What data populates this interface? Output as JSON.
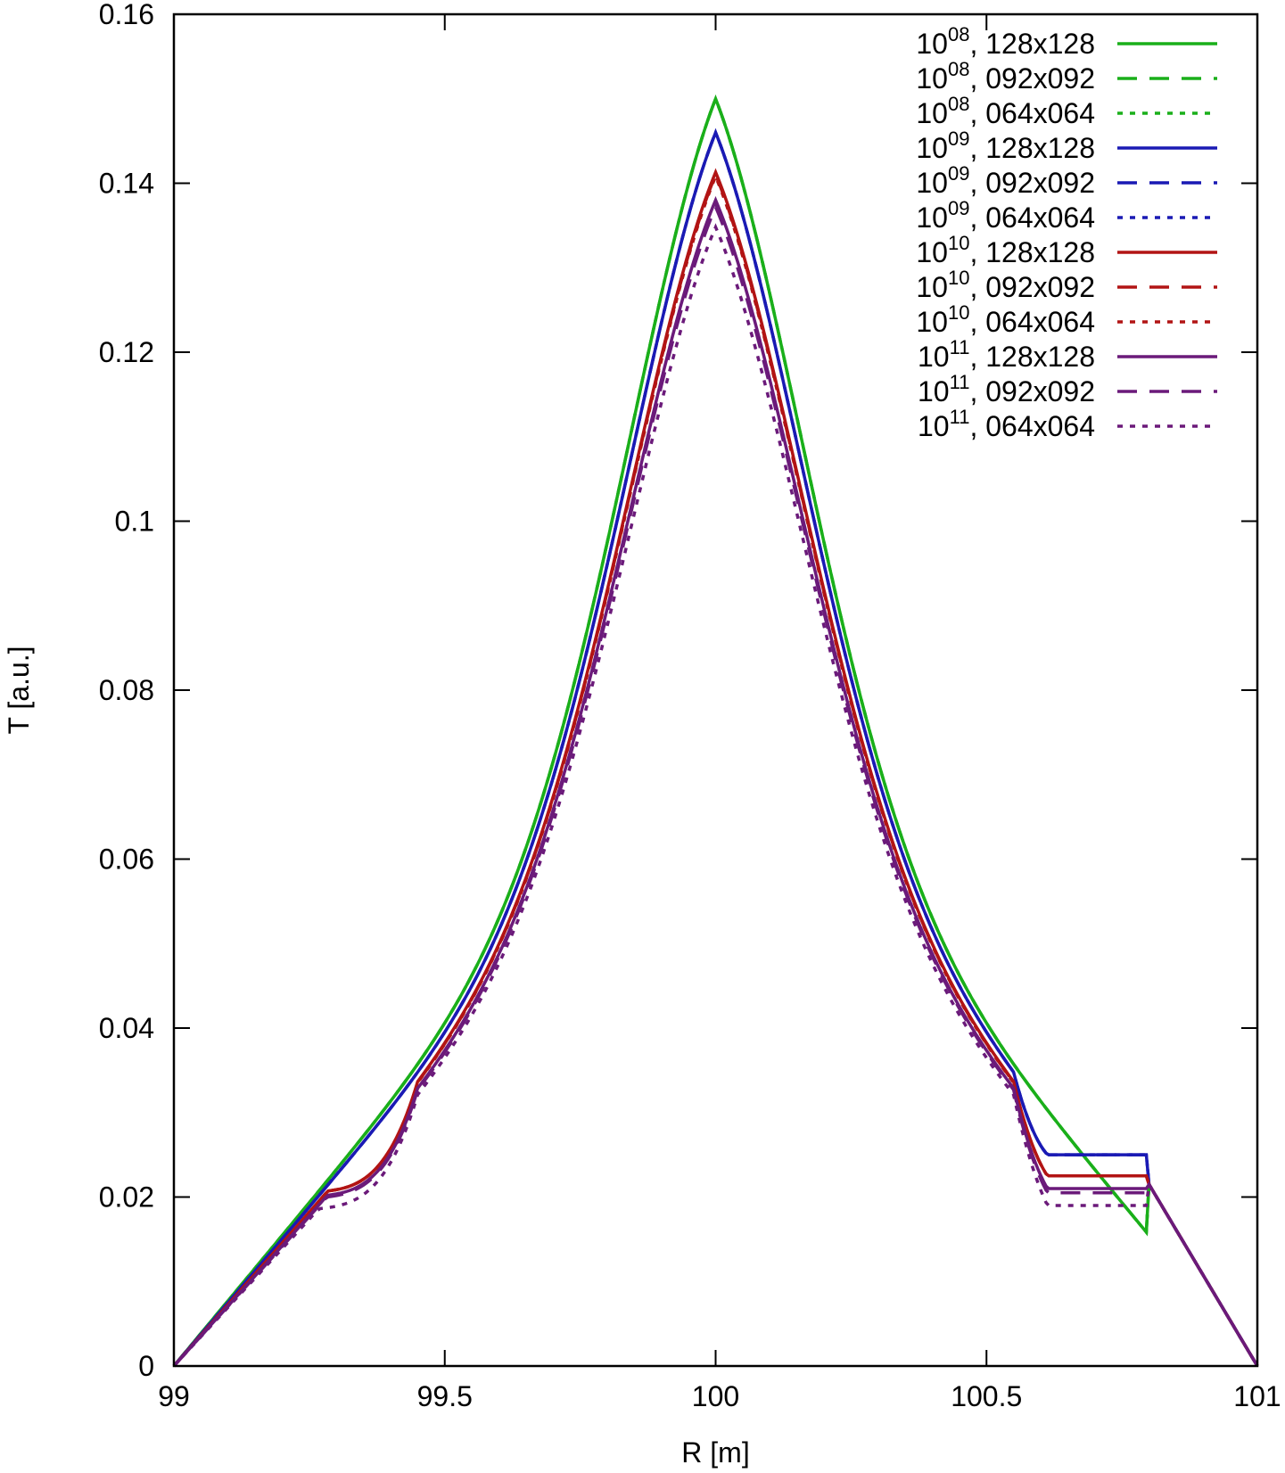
{
  "chart_data": {
    "type": "line",
    "title": "",
    "xlabel": "R [m]",
    "ylabel": "T [a.u.]",
    "xlim": [
      99,
      101
    ],
    "ylim": [
      0,
      0.16
    ],
    "x_ticks": [
      99,
      99.5,
      100,
      100.5,
      101
    ],
    "x_tick_labels": [
      "99",
      "99.5",
      "100",
      "100.5",
      "101"
    ],
    "y_ticks": [
      0,
      0.02,
      0.04,
      0.06,
      0.08,
      0.1,
      0.12,
      0.14,
      0.16
    ],
    "y_tick_labels": [
      "0",
      "0.02",
      "0.04",
      "0.06",
      "0.08",
      "0.1",
      "0.12",
      "0.14",
      "0.16"
    ],
    "legend_position": "top-right",
    "series": [
      {
        "name": "10^08, 128x128",
        "base": "10",
        "exp": "08",
        "grid": ", 128x128",
        "color": "#1aaf1a",
        "dash": "solid",
        "peak": 0.15,
        "shoulder_left": 0.0,
        "shoulder_right": 0.0
      },
      {
        "name": "10^08, 092x092",
        "base": "10",
        "exp": "08",
        "grid": ", 092x092",
        "color": "#1aaf1a",
        "dash": "dashed",
        "peak": 0.15,
        "shoulder_left": 0.0,
        "shoulder_right": 0.0
      },
      {
        "name": "10^08, 064x064",
        "base": "10",
        "exp": "08",
        "grid": ", 064x064",
        "color": "#1aaf1a",
        "dash": "dotted",
        "peak": 0.15,
        "shoulder_left": 0.0,
        "shoulder_right": 0.0
      },
      {
        "name": "10^09, 128x128",
        "base": "10",
        "exp": "09",
        "grid": ", 128x128",
        "color": "#1a1ab4",
        "dash": "solid",
        "peak": 0.146,
        "shoulder_left": 0.0,
        "shoulder_right": 0.025
      },
      {
        "name": "10^09, 092x092",
        "base": "10",
        "exp": "09",
        "grid": ", 092x092",
        "color": "#1a1ab4",
        "dash": "dashed",
        "peak": 0.146,
        "shoulder_left": 0.0,
        "shoulder_right": 0.025
      },
      {
        "name": "10^09, 064x064",
        "base": "10",
        "exp": "09",
        "grid": ", 064x064",
        "color": "#1a1ab4",
        "dash": "dotted",
        "peak": 0.146,
        "shoulder_left": 0.0,
        "shoulder_right": 0.025
      },
      {
        "name": "10^10, 128x128",
        "base": "10",
        "exp": "10",
        "grid": ", 128x128",
        "color": "#b21414",
        "dash": "solid",
        "peak": 0.1413,
        "shoulder_left": 0.0205,
        "shoulder_right": 0.0225
      },
      {
        "name": "10^10, 092x092",
        "base": "10",
        "exp": "10",
        "grid": ", 092x092",
        "color": "#b21414",
        "dash": "dashed",
        "peak": 0.141,
        "shoulder_left": 0.0205,
        "shoulder_right": 0.0225
      },
      {
        "name": "10^10, 064x064",
        "base": "10",
        "exp": "10",
        "grid": ", 064x064",
        "color": "#b21414",
        "dash": "dotted",
        "peak": 0.1408,
        "shoulder_left": 0.0205,
        "shoulder_right": 0.0225
      },
      {
        "name": "10^11, 128x128",
        "base": "10",
        "exp": "11",
        "grid": ", 128x128",
        "color": "#6b1a7a",
        "dash": "solid",
        "peak": 0.138,
        "shoulder_left": 0.02,
        "shoulder_right": 0.021
      },
      {
        "name": "10^11, 092x092",
        "base": "10",
        "exp": "11",
        "grid": ", 092x092",
        "color": "#6b1a7a",
        "dash": "dashed",
        "peak": 0.1372,
        "shoulder_left": 0.0198,
        "shoulder_right": 0.0205
      },
      {
        "name": "10^11, 064x064",
        "base": "10",
        "exp": "11",
        "grid": ", 064x064",
        "color": "#6b1a7a",
        "dash": "dotted",
        "peak": 0.1348,
        "shoulder_left": 0.0185,
        "shoulder_right": 0.019
      }
    ]
  }
}
